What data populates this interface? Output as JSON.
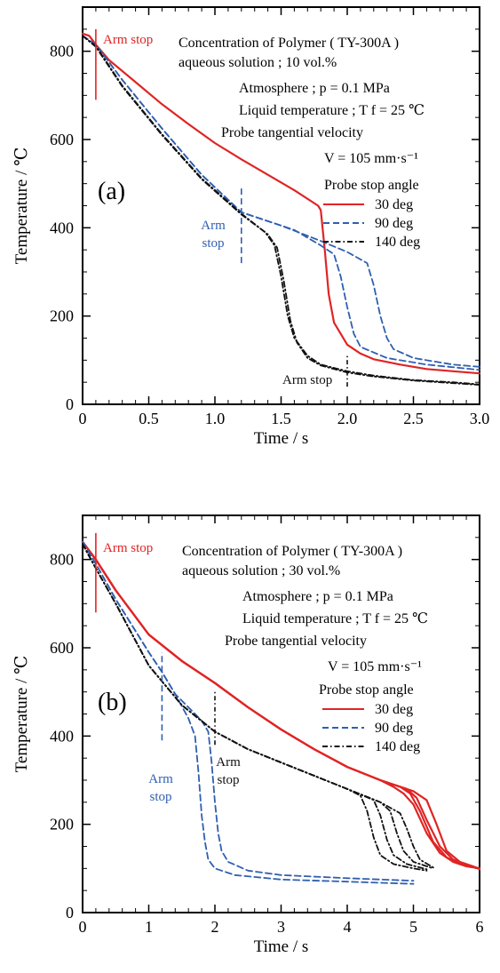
{
  "chart_data": [
    {
      "type": "line",
      "panel_label": "(a)",
      "xlabel": "Time   /   s",
      "ylabel": "Temperature   /   ℃",
      "xlim": [
        0,
        3.0
      ],
      "ylim": [
        0,
        900
      ],
      "x_ticks": [
        0,
        0.5,
        1.0,
        1.5,
        2.0,
        2.5,
        3.0
      ],
      "x_tick_labels": [
        "0",
        "0.5",
        "1.0",
        "1.5",
        "2.0",
        "2.5",
        "3.0"
      ],
      "y_ticks": [
        0,
        200,
        400,
        600,
        800
      ],
      "y_tick_labels": [
        "0",
        "200",
        "400",
        "600",
        "800"
      ],
      "annotation_lines": [
        "Concentration of Polymer ( TY-300A )",
        "aqueous solution ; 10 vol.%",
        "Atmosphere ;  p = 0.1 MPa",
        "Liquid temperature ; T f = 25 ℃",
        "Probe tangential velocity",
        "V = 105 mm·s⁻¹"
      ],
      "legend_title": "Probe stop angle",
      "legend": [
        "30 deg",
        "90 deg",
        "140 deg"
      ],
      "arm_stop_labels": [
        {
          "text": "Arm stop",
          "color": "#e02424"
        },
        {
          "text": "Arm\nstop",
          "color": "#2f5fb0"
        },
        {
          "text": "Arm stop",
          "color": "#111111"
        }
      ],
      "arm_stops": [
        {
          "x": 0.1,
          "y_from": 690,
          "y_to": 850,
          "color": "#e02424",
          "dash": "none"
        },
        {
          "x": 1.2,
          "y_from": 320,
          "y_to": 490,
          "color": "#2f5fb0",
          "dash": "7,4"
        },
        {
          "x": 2.0,
          "y_from": 40,
          "y_to": 110,
          "color": "#111111",
          "dash": "5,3,1.5,3"
        }
      ],
      "series": [
        {
          "name": "30 deg",
          "color": "#e02424",
          "dash": "none",
          "x": [
            0,
            0.05,
            0.1,
            0.2,
            0.4,
            0.6,
            0.8,
            1.0,
            1.2,
            1.4,
            1.6,
            1.78,
            1.8,
            1.83,
            1.86,
            1.9,
            2.0,
            2.1,
            2.2,
            2.4,
            2.6,
            2.8,
            3.0
          ],
          "y": [
            840,
            835,
            815,
            780,
            730,
            680,
            635,
            592,
            555,
            520,
            485,
            450,
            440,
            350,
            250,
            185,
            135,
            115,
            102,
            90,
            80,
            75,
            70
          ]
        },
        {
          "name": "90 deg",
          "color": "#2f5fb0",
          "dash": "7,4",
          "x": [
            0,
            0.1,
            0.3,
            0.6,
            0.9,
            1.2,
            1.4,
            1.6,
            1.8,
            1.9,
            1.95,
            2.0,
            2.05,
            2.1,
            2.3,
            2.6,
            3.0
          ],
          "y": [
            835,
            815,
            735,
            625,
            520,
            435,
            415,
            395,
            360,
            340,
            290,
            220,
            160,
            130,
            105,
            90,
            78
          ]
        },
        {
          "name": "90 deg",
          "color": "#2f5fb0",
          "dash": "7,4",
          "x": [
            0,
            0.1,
            0.3,
            0.6,
            0.9,
            1.2,
            1.5,
            1.8,
            2.0,
            2.15,
            2.2,
            2.25,
            2.3,
            2.35,
            2.5,
            2.8,
            3.0
          ],
          "y": [
            835,
            815,
            735,
            625,
            520,
            435,
            405,
            370,
            345,
            320,
            270,
            200,
            150,
            125,
            105,
            90,
            85
          ]
        },
        {
          "name": "140 deg",
          "color": "#111111",
          "dash": "6,3,1.5,3",
          "x": [
            0,
            0.1,
            0.3,
            0.6,
            0.9,
            1.2,
            1.38,
            1.45,
            1.5,
            1.55,
            1.6,
            1.7,
            1.8,
            2.0,
            2.2,
            2.5,
            2.8,
            3.0
          ],
          "y": [
            835,
            810,
            720,
            610,
            510,
            430,
            390,
            360,
            290,
            200,
            150,
            110,
            90,
            75,
            65,
            55,
            50,
            45
          ]
        },
        {
          "name": "140 deg",
          "color": "#111111",
          "dash": "6,3,1.5,3",
          "x": [
            0,
            0.1,
            0.3,
            0.6,
            0.9,
            1.2,
            1.4,
            1.47,
            1.52,
            1.57,
            1.62,
            1.7,
            1.8,
            2.0,
            2.2,
            2.5,
            2.8,
            3.0
          ],
          "y": [
            835,
            812,
            722,
            612,
            512,
            432,
            385,
            355,
            280,
            190,
            140,
            105,
            88,
            72,
            63,
            54,
            48,
            44
          ]
        }
      ]
    },
    {
      "type": "line",
      "panel_label": "(b)",
      "xlabel": "Time   /   s",
      "ylabel": "Temperature   /   ℃",
      "xlim": [
        0,
        6
      ],
      "ylim": [
        0,
        900
      ],
      "x_ticks": [
        0,
        1,
        2,
        3,
        4,
        5,
        6
      ],
      "x_tick_labels": [
        "0",
        "1",
        "2",
        "3",
        "4",
        "5",
        "6"
      ],
      "y_ticks": [
        0,
        200,
        400,
        600,
        800
      ],
      "y_tick_labels": [
        "0",
        "200",
        "400",
        "600",
        "800"
      ],
      "annotation_lines": [
        "Concentration of Polymer ( TY-300A )",
        "aqueous solution ; 30 vol.%",
        "Atmosphere ;  p = 0.1 MPa",
        "Liquid temperature ; T f = 25 ℃",
        "Probe tangential velocity",
        "V = 105 mm·s⁻¹"
      ],
      "legend_title": "Probe stop angle",
      "legend": [
        "30 deg",
        "90 deg",
        "140 deg"
      ],
      "arm_stop_labels": [
        {
          "text": "Arm stop",
          "color": "#e02424"
        },
        {
          "text": "Arm\nstop",
          "color": "#2f5fb0"
        },
        {
          "text": "Arm\nstop",
          "color": "#111111"
        }
      ],
      "arm_stops": [
        {
          "x": 0.2,
          "y_from": 680,
          "y_to": 860,
          "color": "#e02424",
          "dash": "none"
        },
        {
          "x": 1.2,
          "y_from": 390,
          "y_to": 590,
          "color": "#2f5fb0",
          "dash": "7,4"
        },
        {
          "x": 2.0,
          "y_from": 380,
          "y_to": 500,
          "color": "#111111",
          "dash": "5,3,1.5,3"
        }
      ],
      "series": [
        {
          "name": "30 deg",
          "color": "#e02424",
          "dash": "none",
          "x": [
            0,
            0.2,
            0.5,
            1.0,
            1.5,
            2.0,
            2.5,
            3.0,
            3.5,
            4.0,
            4.5,
            4.7,
            4.85,
            5.0,
            5.2,
            5.4,
            5.6,
            5.8,
            6.0
          ],
          "y": [
            840,
            800,
            730,
            630,
            570,
            520,
            465,
            415,
            370,
            330,
            300,
            285,
            270,
            245,
            180,
            135,
            115,
            105,
            100
          ]
        },
        {
          "name": "30 deg",
          "color": "#e02424",
          "dash": "none",
          "x": [
            0,
            0.2,
            0.5,
            1.0,
            1.5,
            2.0,
            2.5,
            3.0,
            3.5,
            4.0,
            4.5,
            4.8,
            4.95,
            5.1,
            5.3,
            5.5,
            5.7,
            6.0
          ],
          "y": [
            840,
            800,
            730,
            630,
            570,
            520,
            465,
            415,
            370,
            330,
            300,
            285,
            270,
            230,
            160,
            125,
            110,
            100
          ]
        },
        {
          "name": "30 deg",
          "color": "#e02424",
          "dash": "none",
          "x": [
            0,
            0.2,
            0.5,
            1.0,
            1.5,
            2.0,
            2.5,
            3.0,
            3.5,
            4.0,
            4.5,
            4.9,
            5.05,
            5.2,
            5.4,
            5.6,
            5.8,
            6.0
          ],
          "y": [
            840,
            800,
            730,
            630,
            570,
            520,
            465,
            415,
            370,
            330,
            300,
            280,
            260,
            210,
            150,
            120,
            108,
            100
          ]
        },
        {
          "name": "30 deg",
          "color": "#e02424",
          "dash": "none",
          "x": [
            0,
            0.2,
            0.5,
            1.0,
            1.5,
            2.0,
            2.5,
            3.0,
            3.5,
            4.0,
            4.5,
            5.0,
            5.2,
            5.35,
            5.5,
            5.7,
            5.9,
            6.0
          ],
          "y": [
            840,
            800,
            730,
            630,
            570,
            520,
            465,
            415,
            370,
            330,
            300,
            275,
            255,
            200,
            140,
            115,
            105,
            98
          ]
        },
        {
          "name": "90 deg",
          "color": "#2f5fb0",
          "dash": "7,4",
          "x": [
            0,
            0.2,
            0.5,
            1.0,
            1.2,
            1.4,
            1.6,
            1.7,
            1.75,
            1.8,
            1.85,
            1.9,
            2.0,
            2.3,
            3.0,
            4.0,
            5.0
          ],
          "y": [
            840,
            790,
            710,
            590,
            545,
            495,
            440,
            400,
            320,
            220,
            160,
            120,
            100,
            85,
            75,
            70,
            65
          ]
        },
        {
          "name": "90 deg",
          "color": "#2f5fb0",
          "dash": "7,4",
          "x": [
            0,
            0.2,
            0.5,
            1.0,
            1.2,
            1.4,
            1.6,
            1.8,
            1.9,
            1.95,
            2.0,
            2.05,
            2.1,
            2.2,
            2.5,
            3.0,
            4.0,
            5.0
          ],
          "y": [
            840,
            790,
            710,
            590,
            545,
            495,
            465,
            435,
            410,
            340,
            250,
            180,
            140,
            115,
            95,
            85,
            78,
            72
          ]
        },
        {
          "name": "140 deg",
          "color": "#111111",
          "dash": "6,3,1.5,3",
          "x": [
            0,
            0.2,
            0.5,
            1.0,
            1.5,
            2.0,
            2.5,
            3.0,
            3.5,
            4.0,
            4.2,
            4.3,
            4.4,
            4.5,
            4.7,
            5.0,
            5.2
          ],
          "y": [
            835,
            780,
            700,
            560,
            470,
            410,
            370,
            340,
            310,
            280,
            265,
            230,
            170,
            130,
            110,
            100,
            95
          ]
        },
        {
          "name": "140 deg",
          "color": "#111111",
          "dash": "6,3,1.5,3",
          "x": [
            0,
            0.2,
            0.5,
            1.0,
            1.5,
            2.0,
            2.5,
            3.0,
            3.5,
            4.0,
            4.4,
            4.5,
            4.6,
            4.7,
            4.9,
            5.2
          ],
          "y": [
            835,
            780,
            700,
            560,
            470,
            410,
            370,
            340,
            310,
            280,
            255,
            220,
            165,
            130,
            110,
            98
          ]
        },
        {
          "name": "140 deg",
          "color": "#111111",
          "dash": "6,3,1.5,3",
          "x": [
            0,
            0.2,
            0.5,
            1.0,
            1.5,
            2.0,
            2.5,
            3.0,
            3.5,
            4.0,
            4.5,
            4.65,
            4.75,
            4.85,
            5.0,
            5.3
          ],
          "y": [
            835,
            780,
            700,
            560,
            470,
            410,
            370,
            340,
            310,
            280,
            250,
            230,
            180,
            140,
            115,
            100
          ]
        },
        {
          "name": "140 deg",
          "color": "#111111",
          "dash": "6,3,1.5,3",
          "x": [
            0,
            0.2,
            0.5,
            1.0,
            1.5,
            2.0,
            2.5,
            3.0,
            3.5,
            4.0,
            4.5,
            4.8,
            4.9,
            5.0,
            5.1,
            5.3
          ],
          "y": [
            835,
            780,
            700,
            560,
            470,
            410,
            370,
            340,
            310,
            280,
            250,
            225,
            190,
            150,
            120,
            102
          ]
        }
      ]
    }
  ]
}
